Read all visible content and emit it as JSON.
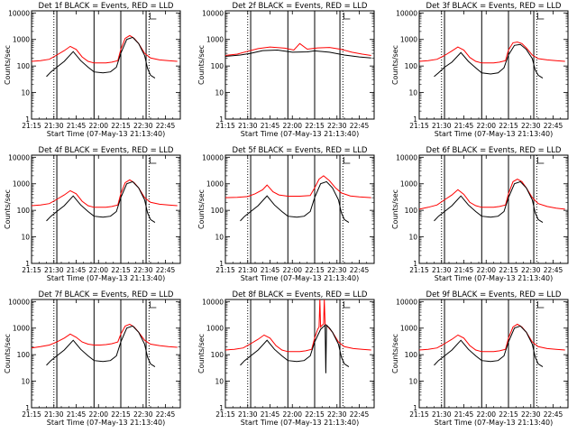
{
  "chart_data": {
    "type": "line",
    "yscale": "log",
    "xlabel": "Start Time (07-May-13 21:13:40)",
    "ylabel": "Counts/sec",
    "x_ticks": [
      "21:15",
      "21:30",
      "21:45",
      "22:00",
      "22:15",
      "22:30",
      "22:45"
    ],
    "x_tick_minutes": [
      0,
      15,
      30,
      45,
      60,
      75,
      90
    ],
    "xlim_minutes": [
      0,
      100
    ],
    "y_ticks": [
      "1",
      "10",
      "100",
      "1000",
      "10000"
    ],
    "ylim": [
      1,
      12000
    ],
    "series_colors": {
      "events": "#000000",
      "lld": "#ff0000"
    },
    "solid_markers_minutes": [
      17,
      42,
      60,
      77
    ],
    "dotted_markers_minutes": [
      15,
      79
    ],
    "panels": [
      {
        "title": "Det 1f BLACK = Events, RED = LLD",
        "events": {
          "x": [
            10,
            13,
            17,
            22,
            28,
            33,
            38,
            42,
            48,
            53,
            57,
            60,
            64,
            68,
            72,
            76,
            78,
            80,
            83
          ],
          "y": [
            40,
            60,
            90,
            150,
            350,
            160,
            90,
            60,
            55,
            60,
            90,
            300,
            1000,
            1200,
            700,
            250,
            80,
            45,
            35
          ]
        },
        "lld": {
          "x": [
            0,
            6,
            12,
            17,
            22,
            26,
            30,
            34,
            38,
            42,
            46,
            50,
            54,
            58,
            60,
            63,
            66,
            69,
            72,
            76,
            80,
            86,
            92,
            98
          ],
          "y": [
            150,
            160,
            180,
            260,
            380,
            550,
            420,
            220,
            150,
            130,
            130,
            130,
            140,
            160,
            420,
            1100,
            1400,
            1100,
            700,
            300,
            200,
            170,
            160,
            150
          ]
        }
      },
      {
        "title": "Det 2f BLACK = Events, RED = LLD",
        "events": {
          "x": [
            0,
            10,
            17,
            25,
            35,
            45,
            55,
            60,
            70,
            80,
            90,
            98
          ],
          "y": [
            230,
            260,
            300,
            380,
            400,
            330,
            340,
            370,
            330,
            260,
            220,
            200
          ]
        },
        "lld": {
          "x": [
            0,
            8,
            15,
            22,
            30,
            40,
            46,
            50,
            55,
            62,
            70,
            78,
            85,
            92,
            98
          ],
          "y": [
            250,
            280,
            360,
            450,
            520,
            470,
            400,
            700,
            430,
            480,
            500,
            420,
            330,
            280,
            250
          ]
        }
      },
      {
        "title": "Det 3f BLACK = Events, RED = LLD",
        "events": {
          "x": [
            10,
            13,
            17,
            22,
            28,
            33,
            38,
            42,
            48,
            53,
            57,
            60,
            64,
            68,
            72,
            76,
            78,
            80,
            83
          ],
          "y": [
            40,
            55,
            90,
            140,
            320,
            150,
            85,
            55,
            50,
            55,
            85,
            260,
            600,
            650,
            420,
            190,
            70,
            45,
            35
          ]
        },
        "lld": {
          "x": [
            0,
            6,
            12,
            17,
            22,
            26,
            30,
            34,
            38,
            42,
            46,
            50,
            54,
            58,
            60,
            63,
            66,
            69,
            72,
            76,
            80,
            86,
            92,
            98
          ],
          "y": [
            150,
            160,
            180,
            250,
            370,
            520,
            400,
            210,
            150,
            130,
            130,
            130,
            140,
            160,
            400,
            750,
            800,
            700,
            480,
            260,
            190,
            170,
            160,
            150
          ]
        }
      },
      {
        "title": "Det 4f BLACK = Events, RED = LLD",
        "events": {
          "x": [
            10,
            13,
            17,
            22,
            28,
            33,
            38,
            42,
            48,
            53,
            57,
            60,
            64,
            68,
            72,
            76,
            78,
            80,
            83
          ],
          "y": [
            40,
            60,
            90,
            150,
            350,
            160,
            90,
            60,
            55,
            60,
            90,
            300,
            1000,
            1200,
            700,
            250,
            80,
            45,
            35
          ]
        },
        "lld": {
          "x": [
            0,
            6,
            12,
            17,
            22,
            26,
            30,
            34,
            38,
            42,
            46,
            50,
            54,
            58,
            60,
            63,
            66,
            69,
            72,
            76,
            80,
            86,
            92,
            98
          ],
          "y": [
            150,
            160,
            180,
            260,
            380,
            550,
            420,
            220,
            150,
            130,
            130,
            130,
            140,
            160,
            420,
            1100,
            1400,
            1100,
            700,
            300,
            200,
            170,
            160,
            150
          ]
        }
      },
      {
        "title": "Det 5f BLACK = Events, RED = LLD",
        "events": {
          "x": [
            10,
            13,
            17,
            22,
            28,
            33,
            38,
            42,
            48,
            53,
            57,
            60,
            64,
            68,
            72,
            76,
            78,
            80,
            83
          ],
          "y": [
            40,
            60,
            90,
            150,
            350,
            160,
            90,
            60,
            55,
            60,
            90,
            300,
            1000,
            1200,
            700,
            250,
            80,
            45,
            35
          ]
        },
        "lld": {
          "x": [
            0,
            8,
            15,
            20,
            25,
            28,
            32,
            36,
            42,
            50,
            57,
            60,
            63,
            66,
            70,
            74,
            78,
            84,
            90,
            98
          ],
          "y": [
            300,
            310,
            330,
            420,
            600,
            900,
            500,
            380,
            340,
            340,
            360,
            700,
            1500,
            2000,
            1300,
            700,
            450,
            350,
            320,
            300
          ]
        }
      },
      {
        "title": "Det 6f BLACK = Events, RED = LLD",
        "events": {
          "x": [
            10,
            13,
            17,
            22,
            28,
            33,
            38,
            42,
            48,
            53,
            57,
            60,
            64,
            68,
            72,
            76,
            78,
            80,
            83
          ],
          "y": [
            40,
            60,
            90,
            150,
            350,
            160,
            90,
            60,
            55,
            60,
            90,
            300,
            1000,
            1200,
            700,
            250,
            80,
            45,
            35
          ]
        },
        "lld": {
          "x": [
            0,
            6,
            12,
            17,
            22,
            26,
            30,
            34,
            38,
            42,
            46,
            50,
            54,
            58,
            60,
            63,
            66,
            69,
            72,
            76,
            80,
            86,
            92,
            98
          ],
          "y": [
            110,
            130,
            160,
            250,
            380,
            600,
            400,
            200,
            150,
            130,
            130,
            130,
            140,
            160,
            420,
            1200,
            1500,
            1200,
            700,
            300,
            180,
            140,
            120,
            110
          ]
        }
      },
      {
        "title": "Det 7f BLACK = Events, RED = LLD",
        "events": {
          "x": [
            10,
            13,
            17,
            22,
            28,
            33,
            38,
            42,
            48,
            53,
            57,
            60,
            64,
            68,
            72,
            76,
            78,
            80,
            83
          ],
          "y": [
            40,
            60,
            90,
            150,
            350,
            160,
            90,
            60,
            55,
            60,
            90,
            300,
            1000,
            1200,
            700,
            250,
            80,
            45,
            35
          ]
        },
        "lld": {
          "x": [
            0,
            6,
            12,
            17,
            22,
            26,
            30,
            34,
            38,
            42,
            46,
            50,
            54,
            58,
            60,
            63,
            66,
            69,
            72,
            76,
            80,
            86,
            92,
            98
          ],
          "y": [
            180,
            200,
            230,
            300,
            420,
            600,
            450,
            300,
            250,
            230,
            230,
            240,
            260,
            300,
            600,
            1200,
            1400,
            1100,
            700,
            350,
            250,
            220,
            200,
            190
          ]
        }
      },
      {
        "title": "Det 8f BLACK = Events, RED = LLD",
        "events": {
          "x": [
            10,
            13,
            17,
            22,
            28,
            33,
            38,
            42,
            48,
            53,
            57,
            60,
            64,
            67,
            67.5,
            68,
            70,
            72,
            76,
            78,
            80,
            83
          ],
          "y": [
            40,
            60,
            90,
            150,
            350,
            160,
            90,
            60,
            55,
            60,
            90,
            300,
            900,
            1300,
            20,
            1300,
            1000,
            700,
            250,
            80,
            45,
            35
          ]
        },
        "lld": {
          "x": [
            0,
            6,
            12,
            17,
            22,
            26,
            30,
            34,
            38,
            42,
            46,
            50,
            54,
            58,
            60,
            62,
            63,
            63.5,
            64,
            65,
            66,
            66.5,
            67,
            69,
            72,
            76,
            80,
            86,
            92,
            98
          ],
          "y": [
            150,
            160,
            180,
            260,
            380,
            550,
            420,
            220,
            150,
            130,
            130,
            130,
            140,
            160,
            420,
            900,
            1100,
            12000,
            1100,
            1300,
            1400,
            12000,
            1400,
            1100,
            700,
            300,
            200,
            170,
            160,
            150
          ]
        }
      },
      {
        "title": "Det 9f BLACK = Events, RED = LLD",
        "events": {
          "x": [
            10,
            13,
            17,
            22,
            28,
            33,
            38,
            42,
            48,
            53,
            57,
            60,
            64,
            68,
            72,
            76,
            78,
            80,
            83
          ],
          "y": [
            40,
            60,
            90,
            150,
            350,
            160,
            90,
            60,
            55,
            60,
            90,
            300,
            1000,
            1200,
            700,
            250,
            80,
            45,
            35
          ]
        },
        "lld": {
          "x": [
            0,
            6,
            12,
            17,
            22,
            26,
            30,
            34,
            38,
            42,
            46,
            50,
            54,
            58,
            60,
            63,
            66,
            69,
            72,
            76,
            80,
            86,
            92,
            98
          ],
          "y": [
            150,
            160,
            180,
            260,
            380,
            550,
            420,
            220,
            150,
            130,
            130,
            130,
            140,
            160,
            420,
            1100,
            1400,
            1100,
            700,
            300,
            200,
            170,
            160,
            150
          ]
        }
      }
    ]
  }
}
